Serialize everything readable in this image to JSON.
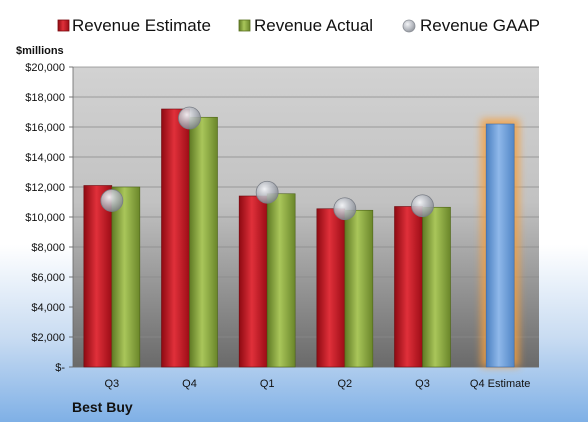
{
  "chart_data": {
    "type": "bar",
    "categories": [
      "Q3",
      "Q4",
      "Q1",
      "Q2",
      "Q3",
      "Q4 Estimate"
    ],
    "series": [
      {
        "name": "Revenue Estimate",
        "values": [
          12100,
          17200,
          11400,
          10550,
          10700,
          null
        ]
      },
      {
        "name": "Revenue Actual",
        "values": [
          12000,
          16650,
          11550,
          10450,
          10650,
          16200
        ]
      },
      {
        "name": "Revenue GAAP",
        "values": [
          11100,
          16600,
          11650,
          10550,
          10750,
          null
        ]
      }
    ],
    "y_unit_label": "$millions",
    "ylim": [
      0,
      20000
    ],
    "y_ticks": [
      "$-",
      "$2,000",
      "$4,000",
      "$6,000",
      "$8,000",
      "$10,000",
      "$12,000",
      "$14,000",
      "$16,000",
      "$18,000",
      "$20,000"
    ],
    "grid": true,
    "legend_position": "top",
    "company": "Best Buy",
    "colors": {
      "estimate": "#c8101e",
      "actual": "#8aaa3c",
      "gaap": "#b8bcc4",
      "forecast": "#6f9fd8",
      "forecast_glow": "#f5a040",
      "plot_top": "#d0d0d0",
      "plot_bottom": "#6e6e6e"
    }
  }
}
